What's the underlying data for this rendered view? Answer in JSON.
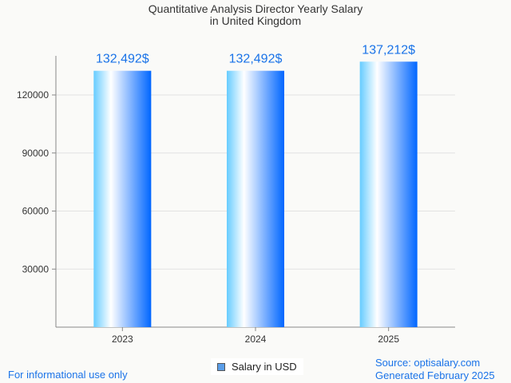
{
  "chart_data": {
    "type": "bar",
    "title": "Quantitative Analysis Director Yearly Salary",
    "subtitle": "in United Kingdom",
    "categories": [
      "2023",
      "2024",
      "2025"
    ],
    "values": [
      132492,
      132492,
      137212
    ],
    "data_labels": [
      "132,492$",
      "132,492$",
      "137,212$"
    ],
    "xlabel": "",
    "ylabel": "",
    "ylim": [
      0,
      135000
    ],
    "yticks": [
      30000,
      60000,
      90000,
      120000
    ],
    "ytick_labels": [
      "30000",
      "60000",
      "90000",
      "120000"
    ],
    "grid": true,
    "legend": {
      "placement": "bottom-center",
      "entries": [
        "Salary in USD"
      ]
    },
    "colors": {
      "bar_light": "#66ccff",
      "bar_dark": "#0066ff",
      "label": "#1a73e8"
    }
  },
  "footer": {
    "disclaimer": "For informational use only",
    "source": "Source: optisalary.com",
    "generated": "Generated February 2025"
  }
}
